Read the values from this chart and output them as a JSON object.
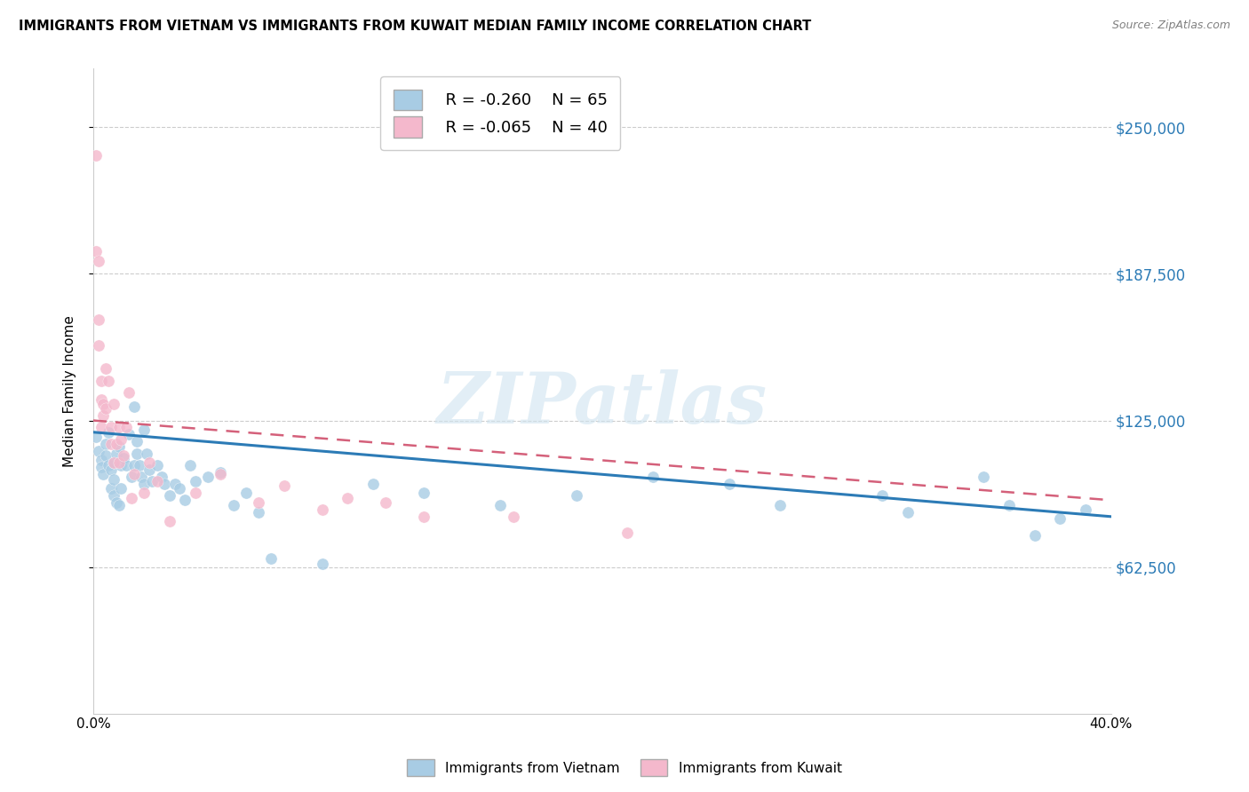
{
  "title": "IMMIGRANTS FROM VIETNAM VS IMMIGRANTS FROM KUWAIT MEDIAN FAMILY INCOME CORRELATION CHART",
  "source": "Source: ZipAtlas.com",
  "ylabel": "Median Family Income",
  "xlim": [
    0.0,
    0.4
  ],
  "ylim": [
    0,
    275000
  ],
  "yticks": [
    62500,
    125000,
    187500,
    250000
  ],
  "ytick_labels": [
    "$62,500",
    "$125,000",
    "$187,500",
    "$250,000"
  ],
  "xticks": [
    0.0,
    0.05,
    0.1,
    0.15,
    0.2,
    0.25,
    0.3,
    0.35,
    0.4
  ],
  "xtick_labels": [
    "0.0%",
    "",
    "",
    "",
    "",
    "",
    "",
    "",
    "40.0%"
  ],
  "legend_r1": "R = -0.260",
  "legend_n1": "N = 65",
  "legend_r2": "R = -0.065",
  "legend_n2": "N = 40",
  "color_blue": "#a8cce4",
  "color_pink": "#f4b8cc",
  "color_blue_line": "#2c7bb6",
  "color_pink_line": "#d4607a",
  "watermark": "ZIPatlas",
  "vietnam_x": [
    0.001,
    0.002,
    0.003,
    0.003,
    0.004,
    0.005,
    0.005,
    0.006,
    0.006,
    0.007,
    0.007,
    0.008,
    0.008,
    0.008,
    0.009,
    0.009,
    0.01,
    0.01,
    0.011,
    0.011,
    0.012,
    0.013,
    0.014,
    0.015,
    0.016,
    0.016,
    0.017,
    0.017,
    0.018,
    0.019,
    0.02,
    0.02,
    0.021,
    0.022,
    0.023,
    0.025,
    0.027,
    0.028,
    0.03,
    0.032,
    0.034,
    0.036,
    0.038,
    0.04,
    0.045,
    0.05,
    0.055,
    0.06,
    0.065,
    0.07,
    0.09,
    0.11,
    0.13,
    0.16,
    0.19,
    0.22,
    0.25,
    0.27,
    0.31,
    0.32,
    0.35,
    0.36,
    0.37,
    0.38,
    0.39
  ],
  "vietnam_y": [
    118000,
    112000,
    108000,
    105000,
    102000,
    115000,
    110000,
    120000,
    106000,
    104000,
    96000,
    100000,
    93000,
    107000,
    111000,
    90000,
    114000,
    89000,
    106000,
    96000,
    109000,
    106000,
    119000,
    101000,
    106000,
    131000,
    116000,
    111000,
    106000,
    101000,
    121000,
    98000,
    111000,
    104000,
    99000,
    106000,
    101000,
    98000,
    93000,
    98000,
    96000,
    91000,
    106000,
    99000,
    101000,
    103000,
    89000,
    94000,
    86000,
    66000,
    64000,
    98000,
    94000,
    89000,
    93000,
    101000,
    98000,
    89000,
    93000,
    86000,
    101000,
    89000,
    76000,
    83000,
    87000
  ],
  "kuwait_x": [
    0.001,
    0.001,
    0.002,
    0.002,
    0.002,
    0.003,
    0.003,
    0.003,
    0.004,
    0.004,
    0.005,
    0.005,
    0.006,
    0.007,
    0.007,
    0.008,
    0.008,
    0.009,
    0.01,
    0.01,
    0.011,
    0.012,
    0.013,
    0.014,
    0.015,
    0.016,
    0.02,
    0.022,
    0.025,
    0.03,
    0.04,
    0.05,
    0.065,
    0.075,
    0.09,
    0.1,
    0.115,
    0.13,
    0.165,
    0.21
  ],
  "kuwait_y": [
    238000,
    197000,
    168000,
    157000,
    193000,
    142000,
    134000,
    122000,
    132000,
    127000,
    147000,
    130000,
    142000,
    122000,
    115000,
    132000,
    107000,
    115000,
    122000,
    107000,
    117000,
    110000,
    122000,
    137000,
    92000,
    102000,
    94000,
    107000,
    99000,
    82000,
    94000,
    102000,
    90000,
    97000,
    87000,
    92000,
    90000,
    84000,
    84000,
    77000
  ],
  "vietnam_line_x": [
    0.0,
    0.4
  ],
  "vietnam_line_y": [
    120000,
    84000
  ],
  "kuwait_line_x": [
    0.0,
    0.4
  ],
  "kuwait_line_y": [
    125000,
    91000
  ]
}
